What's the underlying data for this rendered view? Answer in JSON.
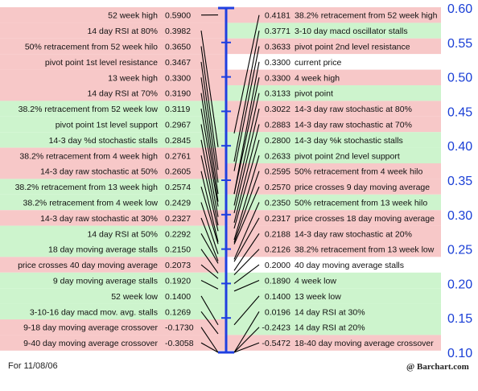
{
  "footer": {
    "date": "For 11/08/06",
    "credit": "@ Barchart.com"
  },
  "colors": {
    "bearish": "#f7c8c8",
    "bullish": "#cdf4cd",
    "neutral": "#ffffff",
    "axis": "#1f3fe0",
    "axis_text": "#1a3fd6",
    "line": "#000000"
  },
  "chart_data": {
    "type": "table",
    "ylim": [
      0.1,
      0.6
    ],
    "axis_ticks": [
      "0.60",
      "0.55",
      "0.50",
      "0.45",
      "0.40",
      "0.35",
      "0.30",
      "0.25",
      "0.20",
      "0.15",
      "0.10"
    ],
    "left": [
      {
        "label": "52 week high",
        "value": "0.5900",
        "tone": "bearish"
      },
      {
        "label": "14 day RSI at 80%",
        "value": "0.3982",
        "tone": "bearish"
      },
      {
        "label": "50% retracement from 52 week hilo",
        "value": "0.3650",
        "tone": "bearish"
      },
      {
        "label": "pivot point 1st level resistance",
        "value": "0.3467",
        "tone": "bearish"
      },
      {
        "label": "13 week high",
        "value": "0.3300",
        "tone": "bearish"
      },
      {
        "label": "14 day RSI at 70%",
        "value": "0.3190",
        "tone": "bearish"
      },
      {
        "label": "38.2% retracement from 52 week low",
        "value": "0.3119",
        "tone": "bullish"
      },
      {
        "label": "pivot point 1st level support",
        "value": "0.2967",
        "tone": "bullish"
      },
      {
        "label": "14-3 day %d stochastic stalls",
        "value": "0.2845",
        "tone": "bullish"
      },
      {
        "label": "38.2% retracement from 4 week high",
        "value": "0.2761",
        "tone": "bearish"
      },
      {
        "label": "14-3 day raw stochastic at 50%",
        "value": "0.2605",
        "tone": "bearish"
      },
      {
        "label": "38.2% retracement from 13 week high",
        "value": "0.2574",
        "tone": "bullish"
      },
      {
        "label": "38.2% retracement from 4 week low",
        "value": "0.2429",
        "tone": "bullish"
      },
      {
        "label": "14-3 day raw stochastic at 30%",
        "value": "0.2327",
        "tone": "bearish"
      },
      {
        "label": "14 day RSI at 50%",
        "value": "0.2292",
        "tone": "bullish"
      },
      {
        "label": "18 day moving average stalls",
        "value": "0.2150",
        "tone": "bullish"
      },
      {
        "label": "price crosses 40 day moving average",
        "value": "0.2073",
        "tone": "bearish"
      },
      {
        "label": "9 day moving average stalls",
        "value": "0.1920",
        "tone": "bullish"
      },
      {
        "label": "52 week low",
        "value": "0.1400",
        "tone": "bullish"
      },
      {
        "label": "3-10-16 day macd mov. avg. stalls",
        "value": "0.1269",
        "tone": "bullish"
      },
      {
        "label": "9-18 day moving average crossover",
        "value": "-0.1730",
        "tone": "bearish"
      },
      {
        "label": "9-40 day moving average crossover",
        "value": "-0.3058",
        "tone": "bearish"
      }
    ],
    "right": [
      {
        "label": "38.2% retracement from 52 week high",
        "value": "0.4181",
        "tone": "bearish"
      },
      {
        "label": "3-10 day macd oscillator stalls",
        "value": "0.3771",
        "tone": "bullish"
      },
      {
        "label": "pivot point 2nd level resistance",
        "value": "0.3633",
        "tone": "bearish"
      },
      {
        "label": "current price",
        "value": "0.3300",
        "tone": "neutral"
      },
      {
        "label": "4 week high",
        "value": "0.3300",
        "tone": "bearish"
      },
      {
        "label": "pivot point",
        "value": "0.3133",
        "tone": "bullish"
      },
      {
        "label": "14-3 day raw stochastic at 80%",
        "value": "0.3022",
        "tone": "bearish"
      },
      {
        "label": "14-3 day raw stochastic at 70%",
        "value": "0.2883",
        "tone": "bearish"
      },
      {
        "label": "14-3 day %k stochastic stalls",
        "value": "0.2800",
        "tone": "bullish"
      },
      {
        "label": "pivot point 2nd level support",
        "value": "0.2633",
        "tone": "bullish"
      },
      {
        "label": "50% retracement from 4 week hilo",
        "value": "0.2595",
        "tone": "bearish"
      },
      {
        "label": "price crosses 9 day moving average",
        "value": "0.2570",
        "tone": "bearish"
      },
      {
        "label": "50% retracement from 13 week hilo",
        "value": "0.2350",
        "tone": "bullish"
      },
      {
        "label": "price crosses 18 day moving average",
        "value": "0.2317",
        "tone": "bearish"
      },
      {
        "label": "14-3 day raw stochastic at 20%",
        "value": "0.2188",
        "tone": "bearish"
      },
      {
        "label": "38.2% retracement from 13 week low",
        "value": "0.2126",
        "tone": "bearish"
      },
      {
        "label": "40 day moving average stalls",
        "value": "0.2000",
        "tone": "neutral"
      },
      {
        "label": "4 week low",
        "value": "0.1890",
        "tone": "bullish"
      },
      {
        "label": "13 week low",
        "value": "0.1400",
        "tone": "bullish"
      },
      {
        "label": "14 day RSI at 30%",
        "value": "0.0196",
        "tone": "bullish"
      },
      {
        "label": "14 day RSI at 20%",
        "value": "-0.2423",
        "tone": "bullish"
      },
      {
        "label": "18-40 day moving average crossover",
        "value": "-0.5472",
        "tone": "bearish"
      }
    ]
  }
}
